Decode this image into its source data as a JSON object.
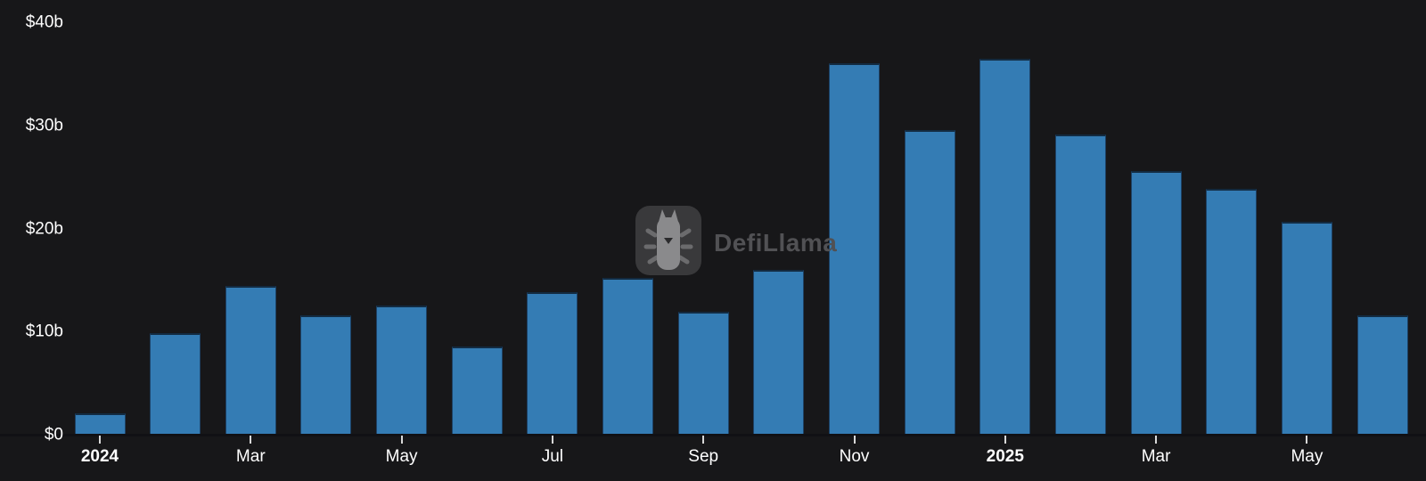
{
  "watermark": {
    "brand": "DefiLlama",
    "logo_icon": "llama-logo-icon"
  },
  "chart_data": {
    "type": "bar",
    "title": "",
    "unit": "$ billions",
    "x": [
      "Jan 2024",
      "Feb 2024",
      "Mar 2024",
      "Apr 2024",
      "May 2024",
      "Jun 2024",
      "Jul 2024",
      "Aug 2024",
      "Sep 2024",
      "Oct 2024",
      "Nov 2024",
      "Dec 2024",
      "Jan 2025",
      "Feb 2025",
      "Mar 2025",
      "Apr 2025",
      "May 2025",
      "Jun 2025"
    ],
    "values": [
      2.0,
      9.8,
      14.3,
      11.5,
      12.4,
      8.5,
      13.7,
      15.1,
      11.8,
      15.9,
      35.9,
      29.5,
      36.4,
      29.0,
      25.5,
      23.8,
      20.6,
      11.5
    ],
    "ylim": [
      0,
      40
    ],
    "grid": false,
    "legend": "none",
    "y_axis": {
      "ticks": [
        {
          "value": 0,
          "label": "$0"
        },
        {
          "value": 10,
          "label": "$10b"
        },
        {
          "value": 20,
          "label": "$20b"
        },
        {
          "value": 30,
          "label": "$30b"
        },
        {
          "value": 40,
          "label": "$40b"
        }
      ]
    },
    "x_axis": {
      "ticks": [
        {
          "at": 0,
          "label": "2024",
          "bold": true
        },
        {
          "at": 2,
          "label": "Mar",
          "bold": false
        },
        {
          "at": 4,
          "label": "May",
          "bold": false
        },
        {
          "at": 6,
          "label": "Jul",
          "bold": false
        },
        {
          "at": 8,
          "label": "Sep",
          "bold": false
        },
        {
          "at": 10,
          "label": "Nov",
          "bold": false
        },
        {
          "at": 12,
          "label": "2025",
          "bold": true
        },
        {
          "at": 14,
          "label": "Mar",
          "bold": false
        },
        {
          "at": 16,
          "label": "May",
          "bold": false
        }
      ]
    },
    "colors": {
      "background": "#171719",
      "bar_fill": "#347cb4",
      "bar_border": "#1d4266",
      "axis_text": "#ffffff",
      "tick_mark": "#d8d8d8",
      "baseline": "#101014",
      "watermark_text": "#515154"
    }
  }
}
